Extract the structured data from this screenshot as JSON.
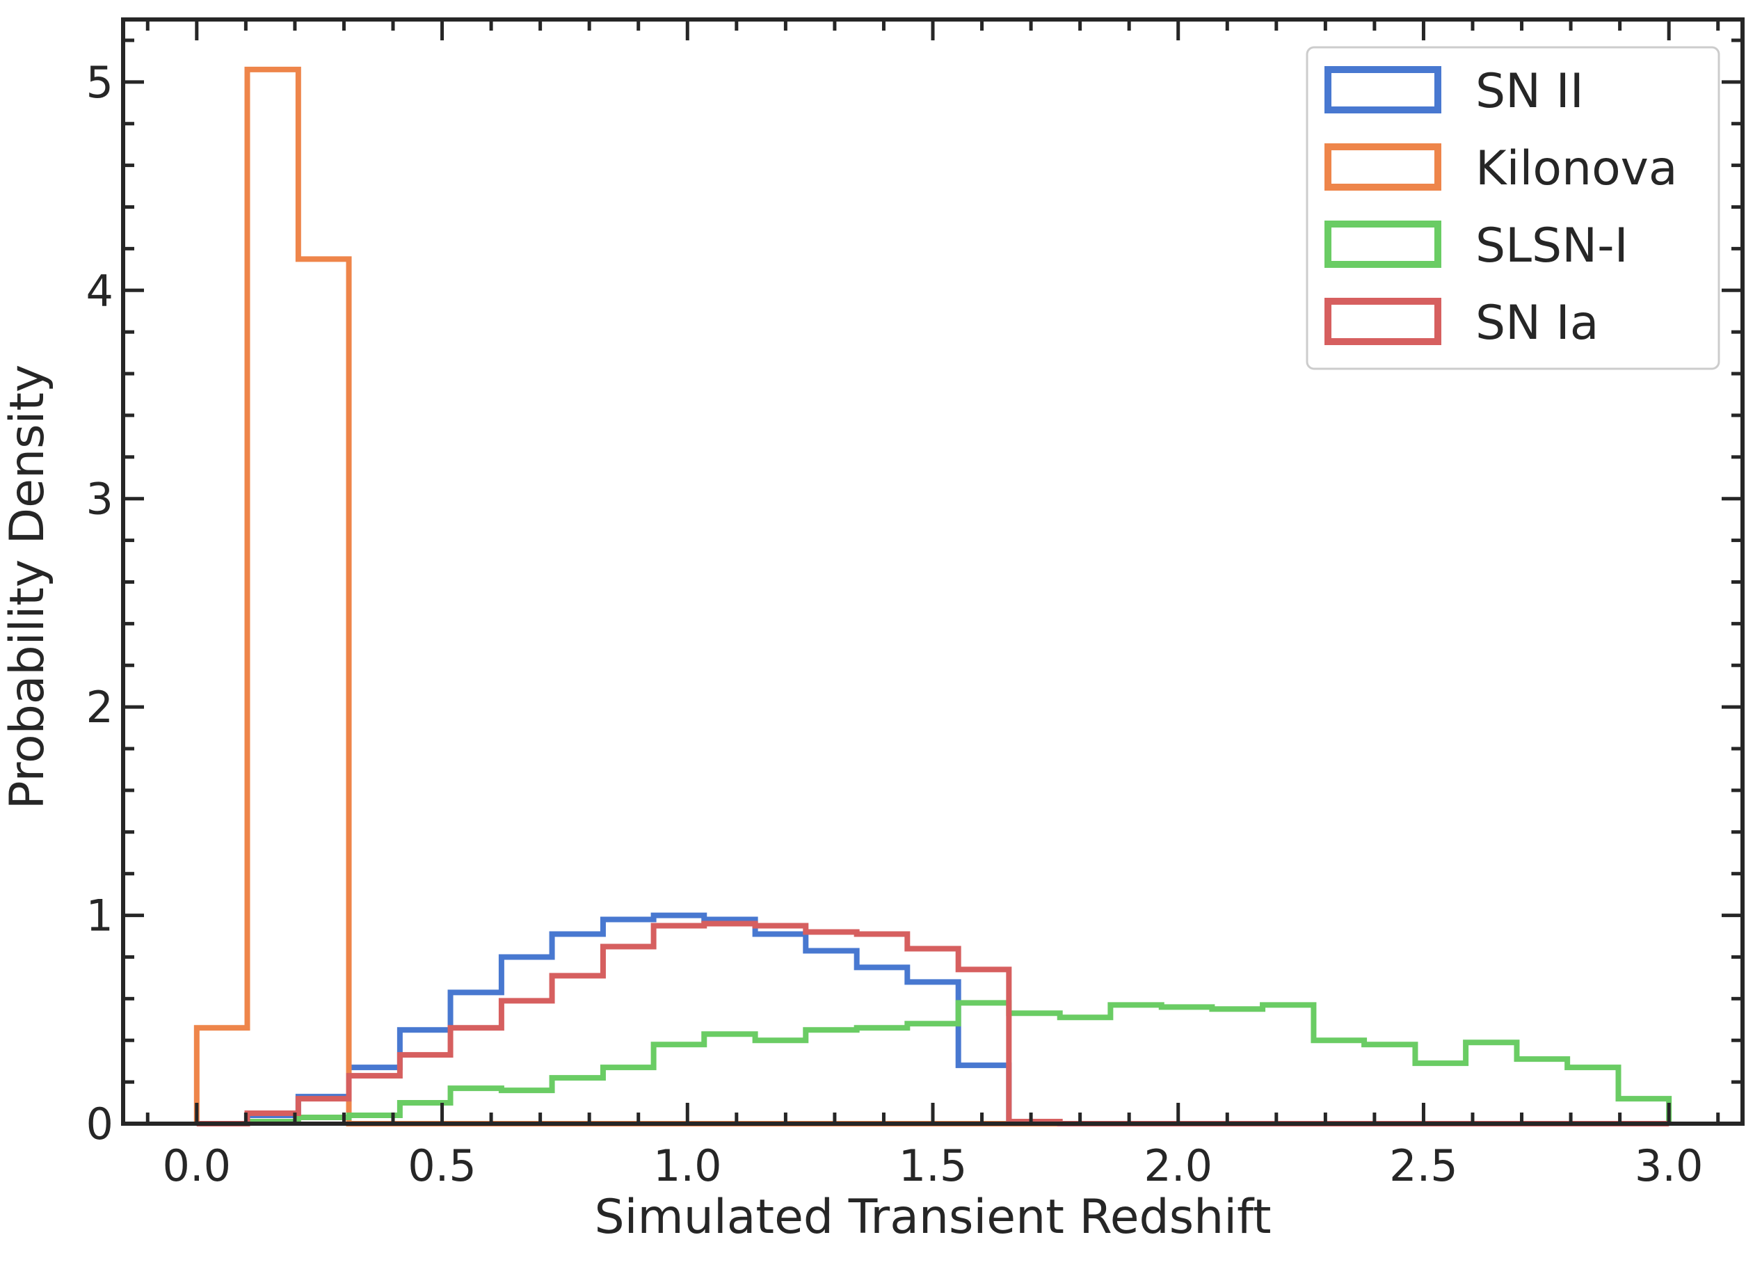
{
  "chart_data": {
    "type": "histogram-step",
    "xlabel": "Simulated Transient Redshift",
    "ylabel": "Probability Density",
    "xlim": [
      -0.15,
      3.15
    ],
    "ylim": [
      0,
      5.3
    ],
    "xticks": [
      0.0,
      0.5,
      1.0,
      1.5,
      2.0,
      2.5,
      3.0
    ],
    "xtick_labels": [
      "0.0",
      "0.5",
      "1.0",
      "1.5",
      "2.0",
      "2.5",
      "3.0"
    ],
    "yticks": [
      0,
      1,
      2,
      3,
      4,
      5
    ],
    "ytick_labels": [
      "0",
      "1",
      "2",
      "3",
      "4",
      "5"
    ],
    "legend_position": "top-right",
    "series": [
      {
        "name": "SN II",
        "color": "#4878d0",
        "edges": [
          0.0,
          0.103,
          0.207,
          0.31,
          0.414,
          0.517,
          0.621,
          0.724,
          0.828,
          0.931,
          1.034,
          1.138,
          1.241,
          1.345,
          1.448,
          1.552,
          1.655
        ],
        "values": [
          0.0,
          0.04,
          0.13,
          0.27,
          0.45,
          0.63,
          0.8,
          0.91,
          0.98,
          1.0,
          0.98,
          0.91,
          0.83,
          0.75,
          0.68,
          0.28
        ]
      },
      {
        "name": "Kilonova",
        "color": "#ee854a",
        "edges": [
          0.0,
          0.103,
          0.207,
          0.31,
          0.414,
          0.517,
          0.621,
          0.724,
          0.828,
          0.931,
          1.034,
          1.138,
          1.241,
          1.345,
          1.448,
          1.552,
          1.655,
          1.759,
          1.862,
          1.966,
          2.069,
          2.172,
          2.276,
          2.379,
          2.483,
          2.586,
          2.69,
          2.793,
          2.897,
          3.0
        ],
        "values": [
          0.46,
          5.06,
          4.15,
          0,
          0,
          0,
          0,
          0,
          0,
          0,
          0,
          0,
          0,
          0,
          0,
          0,
          0,
          0,
          0,
          0,
          0,
          0,
          0,
          0,
          0,
          0,
          0,
          0,
          0
        ]
      },
      {
        "name": "SLSN-I",
        "color": "#6acc64",
        "edges": [
          0.103,
          0.207,
          0.31,
          0.414,
          0.517,
          0.621,
          0.724,
          0.828,
          0.931,
          1.034,
          1.138,
          1.241,
          1.345,
          1.448,
          1.552,
          1.655,
          1.759,
          1.862,
          1.966,
          2.069,
          2.172,
          2.276,
          2.379,
          2.483,
          2.586,
          2.69,
          2.793,
          2.897,
          3.0
        ],
        "values": [
          0.01,
          0.03,
          0.04,
          0.1,
          0.17,
          0.16,
          0.22,
          0.27,
          0.38,
          0.43,
          0.4,
          0.45,
          0.46,
          0.48,
          0.58,
          0.53,
          0.51,
          0.57,
          0.56,
          0.55,
          0.57,
          0.4,
          0.38,
          0.29,
          0.39,
          0.31,
          0.27,
          0.12
        ]
      },
      {
        "name": "SN Ia",
        "color": "#d65f5f",
        "edges": [
          0.0,
          0.103,
          0.207,
          0.31,
          0.414,
          0.517,
          0.621,
          0.724,
          0.828,
          0.931,
          1.034,
          1.138,
          1.241,
          1.345,
          1.448,
          1.552,
          1.655,
          1.759,
          1.862,
          1.966,
          2.069,
          2.172,
          2.276,
          2.379,
          2.483,
          2.586,
          2.69,
          2.793,
          2.897,
          3.0
        ],
        "values": [
          0.0,
          0.05,
          0.12,
          0.23,
          0.33,
          0.46,
          0.59,
          0.71,
          0.85,
          0.95,
          0.96,
          0.95,
          0.92,
          0.91,
          0.84,
          0.74,
          0.01,
          0,
          0,
          0,
          0,
          0,
          0,
          0,
          0,
          0,
          0,
          0,
          0
        ]
      }
    ]
  }
}
